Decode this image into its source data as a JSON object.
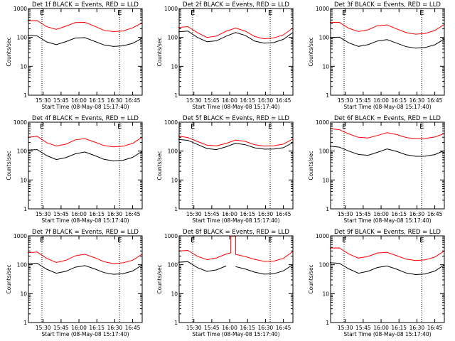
{
  "chart_data": {
    "type": "line",
    "grid": false,
    "legend": "none",
    "colors": {
      "events": "#000000",
      "lld": "#ff0000",
      "axes": "#000000",
      "markers": "#000000"
    },
    "y_scale": "log",
    "ylim": [
      1,
      1000
    ],
    "y_ticks": [
      1,
      10,
      100,
      1000
    ],
    "y_tick_labels": [
      "1",
      "10",
      "100",
      "1000"
    ],
    "x_ticks": [
      "15:30",
      "15:45",
      "16:00",
      "16:15",
      "16:30",
      "16:45"
    ],
    "panels": [
      {
        "title": "Det 1f BLACK = Events, RED = LLD",
        "ylabel": "Counts/sec",
        "xlabel": "Start Time (08-May-08 15:17:40)",
        "markers": [
          {
            "x": "15:29",
            "text": "E"
          },
          {
            "x": "16:34",
            "text": "E"
          }
        ],
        "series": [
          {
            "x": [
              "15:17",
              "15:25",
              "15:33",
              "15:41",
              "15:49",
              "15:57",
              "16:05",
              "16:13",
              "16:21",
              "16:29",
              "16:37",
              "16:45",
              "16:53"
            ],
            "y": [
              380,
              390,
              240,
              190,
              240,
              320,
              330,
              250,
              180,
              160,
              165,
              210,
              320
            ]
          },
          {
            "x": [
              "15:17",
              "15:25",
              "15:33",
              "15:41",
              "15:49",
              "15:57",
              "16:05",
              "16:13",
              "16:21",
              "16:29",
              "16:37",
              "16:45",
              "16:53"
            ],
            "y": [
              120,
              115,
              70,
              55,
              70,
              95,
              100,
              75,
              55,
              48,
              50,
              62,
              95
            ]
          }
        ]
      },
      {
        "title": "Det 2f BLACK = Events, RED = LLD",
        "ylabel": "Counts/sec",
        "xlabel": "Start Time (08-May-08 15:17:40)",
        "markers": [
          {
            "x": "15:29",
            "text": "E"
          },
          {
            "x": "16:34",
            "text": "E"
          }
        ],
        "series": [
          {
            "x": [
              "15:17",
              "15:25",
              "15:33",
              "15:41",
              "15:49",
              "15:57",
              "16:05",
              "16:13",
              "16:21",
              "16:29",
              "16:37",
              "16:45",
              "16:53"
            ],
            "y": [
              220,
              240,
              150,
              100,
              110,
              160,
              210,
              170,
              110,
              90,
              95,
              120,
              210
            ]
          },
          {
            "x": [
              "15:17",
              "15:25",
              "15:33",
              "15:41",
              "15:49",
              "15:57",
              "16:05",
              "16:13",
              "16:21",
              "16:29",
              "16:37",
              "16:45",
              "16:53"
            ],
            "y": [
              160,
              170,
              100,
              70,
              75,
              110,
              150,
              120,
              75,
              62,
              65,
              85,
              150
            ]
          }
        ]
      },
      {
        "title": "Det 3f BLACK = Events, RED = LLD",
        "ylabel": "Counts/sec",
        "xlabel": "Start Time (08-May-08 15:17:40)",
        "markers": [
          {
            "x": "15:29",
            "text": "E"
          },
          {
            "x": "16:34",
            "text": "E"
          }
        ],
        "series": [
          {
            "x": [
              "15:17",
              "15:25",
              "15:33",
              "15:41",
              "15:49",
              "15:57",
              "16:05",
              "16:13",
              "16:21",
              "16:29",
              "16:37",
              "16:45",
              "16:53"
            ],
            "y": [
              330,
              340,
              210,
              160,
              180,
              250,
              270,
              200,
              150,
              130,
              135,
              170,
              280
            ]
          },
          {
            "x": [
              "15:17",
              "15:25",
              "15:33",
              "15:41",
              "15:49",
              "15:57",
              "16:05",
              "16:13",
              "16:21",
              "16:29",
              "16:37",
              "16:45",
              "16:53"
            ],
            "y": [
              100,
              105,
              65,
              48,
              55,
              75,
              85,
              65,
              48,
              42,
              44,
              55,
              90
            ]
          }
        ]
      },
      {
        "title": "Det 4f BLACK = Events, RED = LLD",
        "ylabel": "Counts/sec",
        "xlabel": "Start Time (08-May-08 15:17:40)",
        "markers": [
          {
            "x": "15:29",
            "text": "E"
          },
          {
            "x": "16:34",
            "text": "E"
          }
        ],
        "series": [
          {
            "x": [
              "15:17",
              "15:25",
              "15:33",
              "15:41",
              "15:49",
              "15:57",
              "16:05",
              "16:13",
              "16:21",
              "16:29",
              "16:37",
              "16:45",
              "16:53"
            ],
            "y": [
              300,
              330,
              200,
              150,
              170,
              240,
              270,
              210,
              160,
              140,
              145,
              180,
              300
            ]
          },
          {
            "x": [
              "15:17",
              "15:25",
              "15:33",
              "15:41",
              "15:49",
              "15:57",
              "16:05",
              "16:13",
              "16:21",
              "16:29",
              "16:37",
              "16:45",
              "16:53"
            ],
            "y": [
              110,
              115,
              70,
              50,
              58,
              80,
              95,
              72,
              52,
              45,
              47,
              60,
              100
            ]
          }
        ]
      },
      {
        "title": "Det 5f BLACK = Events, RED = LLD",
        "ylabel": "Counts/sec",
        "xlabel": "Start Time (08-May-08 15:17:40)",
        "markers": [
          {
            "x": "15:29",
            "text": "E"
          },
          {
            "x": "16:34",
            "text": "E"
          }
        ],
        "series": [
          {
            "x": [
              "15:17",
              "15:25",
              "15:33",
              "15:41",
              "15:49",
              "15:57",
              "16:05",
              "16:13",
              "16:21",
              "16:29",
              "16:37",
              "16:45",
              "16:53"
            ],
            "y": [
              330,
              300,
              220,
              160,
              150,
              180,
              240,
              220,
              170,
              150,
              150,
              170,
              260
            ]
          },
          {
            "x": [
              "15:17",
              "15:25",
              "15:33",
              "15:41",
              "15:49",
              "15:57",
              "16:05",
              "16:13",
              "16:21",
              "16:29",
              "16:37",
              "16:45",
              "16:53"
            ],
            "y": [
              260,
              240,
              170,
              120,
              110,
              140,
              190,
              170,
              130,
              115,
              115,
              130,
              200
            ]
          }
        ]
      },
      {
        "title": "Det 6f BLACK = Events, RED = LLD",
        "ylabel": "Counts/sec",
        "xlabel": "Start Time (08-May-08 15:17:40)",
        "markers": [
          {
            "x": "15:29",
            "text": "E"
          },
          {
            "x": "16:34",
            "text": "E"
          }
        ],
        "series": [
          {
            "x": [
              "15:17",
              "15:25",
              "15:33",
              "15:41",
              "15:49",
              "15:57",
              "16:05",
              "16:13",
              "16:21",
              "16:29",
              "16:37",
              "16:45",
              "16:53"
            ],
            "y": [
              600,
              560,
              400,
              300,
              280,
              340,
              430,
              380,
              300,
              270,
              270,
              300,
              400
            ]
          },
          {
            "x": [
              "15:17",
              "15:25",
              "15:33",
              "15:41",
              "15:49",
              "15:57",
              "16:05",
              "16:13",
              "16:21",
              "16:29",
              "16:37",
              "16:45",
              "16:53"
            ],
            "y": [
              150,
              140,
              100,
              75,
              70,
              90,
              120,
              100,
              75,
              65,
              65,
              75,
              105
            ]
          }
        ]
      },
      {
        "title": "Det 7f BLACK = Events, RED = LLD",
        "ylabel": "Counts/sec",
        "xlabel": "Start Time (08-May-08 15:17:40)",
        "markers": [
          {
            "x": "15:29",
            "text": "E"
          },
          {
            "x": "16:34",
            "text": "E"
          }
        ],
        "series": [
          {
            "x": [
              "15:17",
              "15:25",
              "15:33",
              "15:41",
              "15:49",
              "15:57",
              "16:05",
              "16:13",
              "16:21",
              "16:29",
              "16:37",
              "16:45",
              "16:53"
            ],
            "y": [
              260,
              280,
              170,
              120,
              140,
              200,
              230,
              180,
              130,
              110,
              115,
              140,
              230
            ]
          },
          {
            "x": [
              "15:17",
              "15:25",
              "15:33",
              "15:41",
              "15:49",
              "15:57",
              "16:05",
              "16:13",
              "16:21",
              "16:29",
              "16:37",
              "16:45",
              "16:53"
            ],
            "y": [
              110,
              115,
              70,
              50,
              58,
              82,
              95,
              74,
              54,
              46,
              48,
              60,
              100
            ]
          }
        ]
      },
      {
        "title": "Det 8f BLACK = Events, RED = LLD",
        "ylabel": "Counts/sec",
        "xlabel": "Start Time (08-May-08 15:17:40)",
        "markers": [
          {
            "x": "15:29",
            "text": "E"
          },
          {
            "x": "16:34",
            "text": "E"
          }
        ],
        "series": [
          {
            "x": [
              "15:17",
              "15:25",
              "15:33",
              "15:41",
              "15:49",
              "15:57",
              "16:01",
              "16:01",
              "16:05",
              "16:05",
              "16:13",
              "16:21",
              "16:29",
              "16:37",
              "16:45",
              "16:53"
            ],
            "y": [
              300,
              320,
              200,
              150,
              170,
              230,
              260,
              1000,
              1000,
              230,
              190,
              150,
              130,
              135,
              170,
              290
            ]
          },
          {
            "x": [
              "15:17",
              "15:25",
              "15:33",
              "15:41",
              "15:49",
              "15:57",
              "16:01",
              "16:01",
              "16:05",
              "16:05",
              "16:13",
              "16:21",
              "16:29",
              "16:37",
              "16:45",
              "16:53"
            ],
            "y": [
              125,
              130,
              80,
              58,
              65,
              90,
              null,
              null,
              null,
              85,
              70,
              55,
              48,
              50,
              62,
              100
            ]
          }
        ]
      },
      {
        "title": "Det 9f BLACK = Events, RED = LLD",
        "ylabel": "Counts/sec",
        "xlabel": "Start Time (08-May-08 15:17:40)",
        "markers": [
          {
            "x": "15:29",
            "text": "E"
          },
          {
            "x": "16:34",
            "text": "E"
          }
        ],
        "series": [
          {
            "x": [
              "15:17",
              "15:25",
              "15:33",
              "15:41",
              "15:49",
              "15:57",
              "16:05",
              "16:13",
              "16:21",
              "16:29",
              "16:37",
              "16:45",
              "16:53"
            ],
            "y": [
              380,
              390,
              240,
              170,
              190,
              250,
              270,
              210,
              160,
              140,
              145,
              180,
              300
            ]
          },
          {
            "x": [
              "15:17",
              "15:25",
              "15:33",
              "15:41",
              "15:49",
              "15:57",
              "16:05",
              "16:13",
              "16:21",
              "16:29",
              "16:37",
              "16:45",
              "16:53"
            ],
            "y": [
              120,
              115,
              72,
              50,
              58,
              80,
              92,
              72,
              52,
              45,
              47,
              60,
              100
            ]
          }
        ]
      }
    ]
  }
}
